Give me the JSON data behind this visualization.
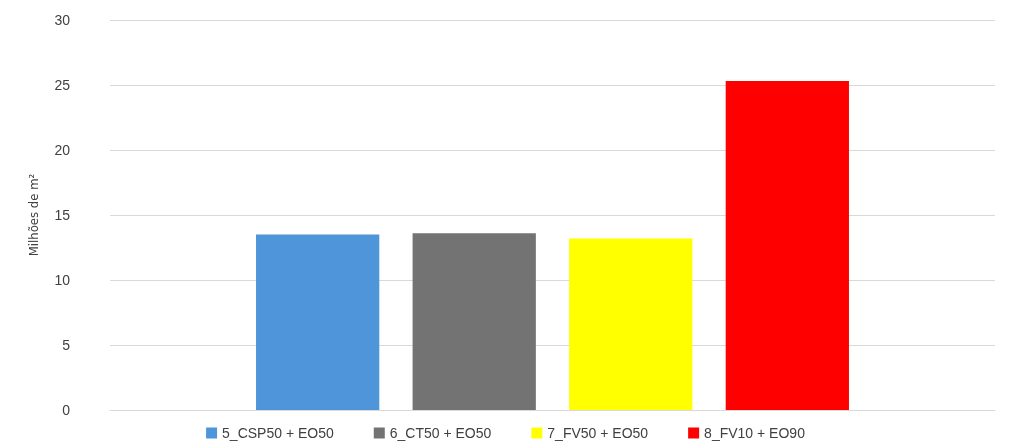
{
  "chart_data": {
    "type": "bar",
    "ylabel": "Milhões de m²",
    "categories": [
      null
    ],
    "series": [
      {
        "name": "5_CSP50 + EO50",
        "color": "#4e95d9",
        "values": [
          13.5
        ]
      },
      {
        "name": "6_CT50 + EO50",
        "color": "#737373",
        "values": [
          13.6
        ]
      },
      {
        "name": "7_FV50 + EO50",
        "color": "#ffff00",
        "values": [
          13.2
        ]
      },
      {
        "name": "8_FV10 + EO90",
        "color": "#ff0000",
        "values": [
          25.3
        ]
      }
    ],
    "ylim": [
      0,
      30
    ],
    "yticks": [
      0,
      5,
      10,
      15,
      20,
      25,
      30
    ],
    "grid": "y",
    "legend": "bottom"
  }
}
